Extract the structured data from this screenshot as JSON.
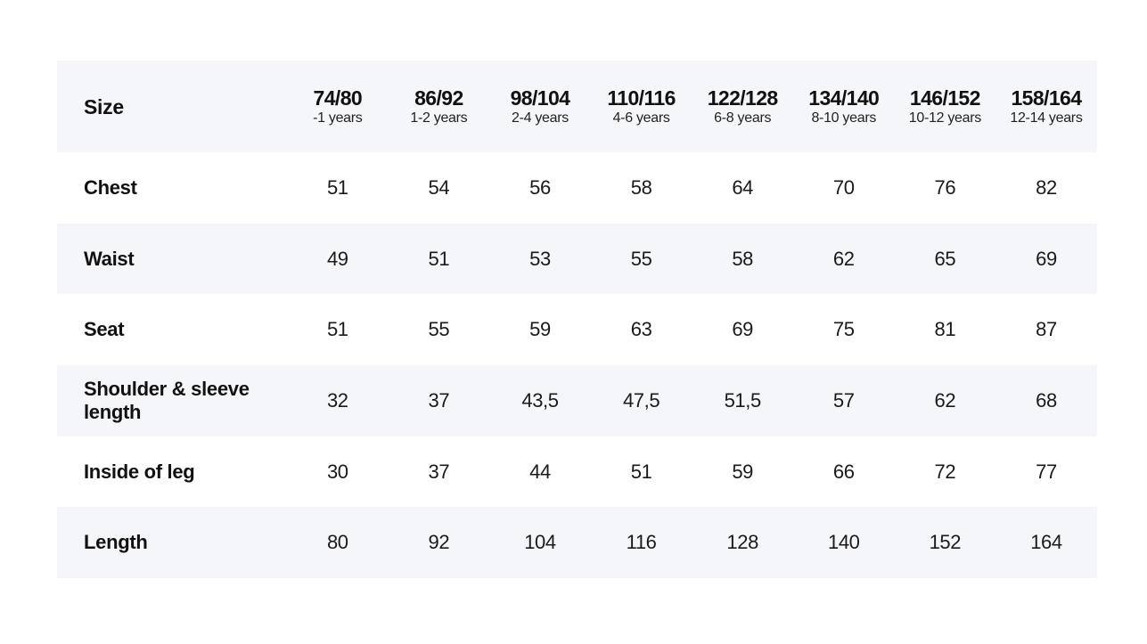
{
  "table": {
    "header_label": "Size",
    "sizes": [
      {
        "code": "74/80",
        "age": "-1 years"
      },
      {
        "code": "86/92",
        "age": "1-2 years"
      },
      {
        "code": "98/104",
        "age": "2-4 years"
      },
      {
        "code": "110/116",
        "age": "4-6 years"
      },
      {
        "code": "122/128",
        "age": "6-8 years"
      },
      {
        "code": "134/140",
        "age": "8-10 years"
      },
      {
        "code": "146/152",
        "age": "10-12 years"
      },
      {
        "code": "158/164",
        "age": "12-14 years"
      }
    ],
    "rows": [
      {
        "label": "Chest",
        "values": [
          "51",
          "54",
          "56",
          "58",
          "64",
          "70",
          "76",
          "82"
        ]
      },
      {
        "label": "Waist",
        "values": [
          "49",
          "51",
          "53",
          "55",
          "58",
          "62",
          "65",
          "69"
        ]
      },
      {
        "label": "Seat",
        "values": [
          "51",
          "55",
          "59",
          "63",
          "69",
          "75",
          "81",
          "87"
        ]
      },
      {
        "label": "Shoulder & sleeve length",
        "values": [
          "32",
          "37",
          "43,5",
          "47,5",
          "51,5",
          "57",
          "62",
          "68"
        ]
      },
      {
        "label": "Inside of leg",
        "values": [
          "30",
          "37",
          "44",
          "51",
          "59",
          "66",
          "72",
          "77"
        ]
      },
      {
        "label": "Length",
        "values": [
          "80",
          "92",
          "104",
          "116",
          "128",
          "140",
          "152",
          "164"
        ]
      }
    ]
  },
  "colors": {
    "shaded_row": "#f5f6f9",
    "background": "#ffffff",
    "text": "#111111"
  }
}
